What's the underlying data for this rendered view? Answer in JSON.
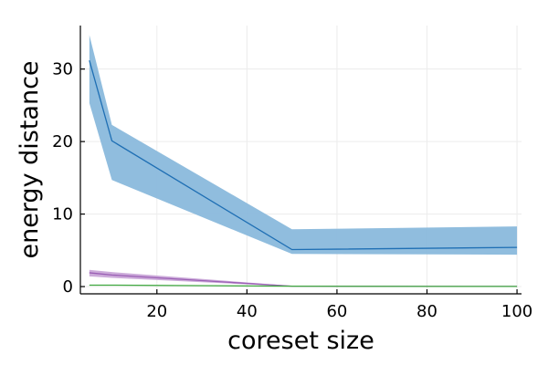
{
  "chart_data": {
    "type": "line",
    "title": "",
    "xlabel": "coreset size",
    "ylabel": "energy distance",
    "xlim": [
      3,
      101
    ],
    "ylim": [
      -1,
      36
    ],
    "xticks": [
      20,
      40,
      60,
      80,
      100
    ],
    "yticks": [
      0,
      10,
      20,
      30
    ],
    "grid": true,
    "legend": "none",
    "series": [
      {
        "color": "#1f6fb4",
        "band_color": "#8ab9dc",
        "x": [
          5,
          10,
          50,
          100
        ],
        "y": [
          31.2,
          20.1,
          5.1,
          5.4
        ],
        "lower": [
          25.3,
          14.7,
          4.5,
          4.4
        ],
        "upper": [
          34.7,
          22.3,
          7.9,
          8.3
        ]
      },
      {
        "color": "#9a5fb4",
        "band_color": "#c9a6d8",
        "x": [
          5,
          10,
          50,
          100
        ],
        "y": [
          1.9,
          1.6,
          0.05,
          0.02
        ],
        "lower": [
          1.4,
          1.2,
          0.0,
          0.0
        ],
        "upper": [
          2.3,
          2.0,
          0.1,
          0.05
        ]
      },
      {
        "color": "#3fa83f",
        "band_color": "#a6d8a6",
        "x": [
          5,
          10,
          50,
          100
        ],
        "y": [
          0.2,
          0.2,
          0.05,
          0.02
        ],
        "lower": [
          0.15,
          0.15,
          0.0,
          0.0
        ],
        "upper": [
          0.25,
          0.25,
          0.1,
          0.05
        ]
      }
    ]
  }
}
